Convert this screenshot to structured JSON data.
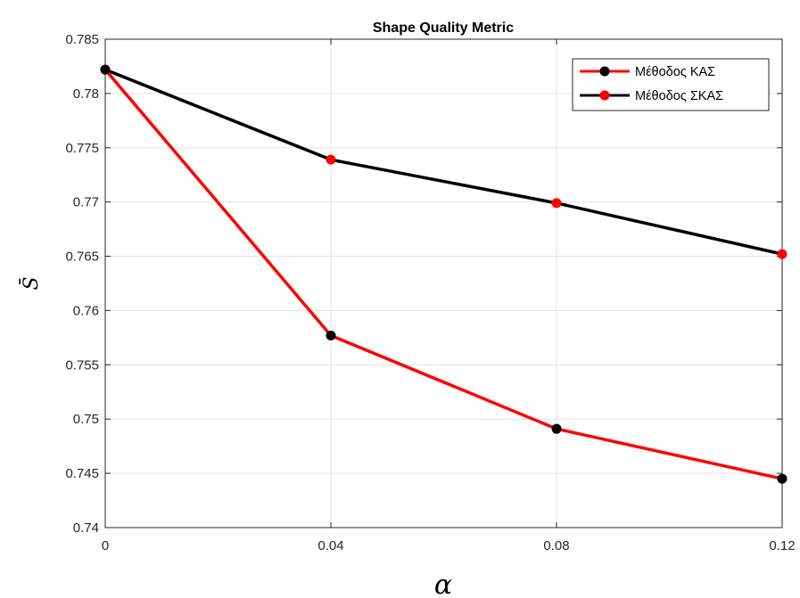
{
  "chart_data": {
    "type": "line",
    "title": "Shape Quality Metric",
    "xlabel": "α",
    "ylabel": "S̄",
    "x": [
      0,
      0.04,
      0.08,
      0.12
    ],
    "x_tick_labels": [
      "0",
      "0.04",
      "0.08",
      "0.12"
    ],
    "xlim": [
      0,
      0.12
    ],
    "ylim": [
      0.74,
      0.785
    ],
    "y_ticks": [
      0.74,
      0.745,
      0.75,
      0.755,
      0.76,
      0.765,
      0.77,
      0.775,
      0.78,
      0.785
    ],
    "y_tick_labels": [
      "0.74",
      "0.745",
      "0.75",
      "0.755",
      "0.76",
      "0.765",
      "0.77",
      "0.775",
      "0.78",
      "0.785"
    ],
    "grid": true,
    "legend_position": "top-right",
    "series": [
      {
        "name": "Μέθοδος ΚΑΣ",
        "values": [
          0.7822,
          0.7577,
          0.7491,
          0.7445
        ],
        "line_color": "#ff0000",
        "marker_color": "#000000"
      },
      {
        "name": "Μέθοδος ΣΚΑΣ",
        "values": [
          0.7822,
          0.7739,
          0.7699,
          0.7652
        ],
        "line_color": "#000000",
        "marker_color": "#ff0000"
      }
    ]
  }
}
